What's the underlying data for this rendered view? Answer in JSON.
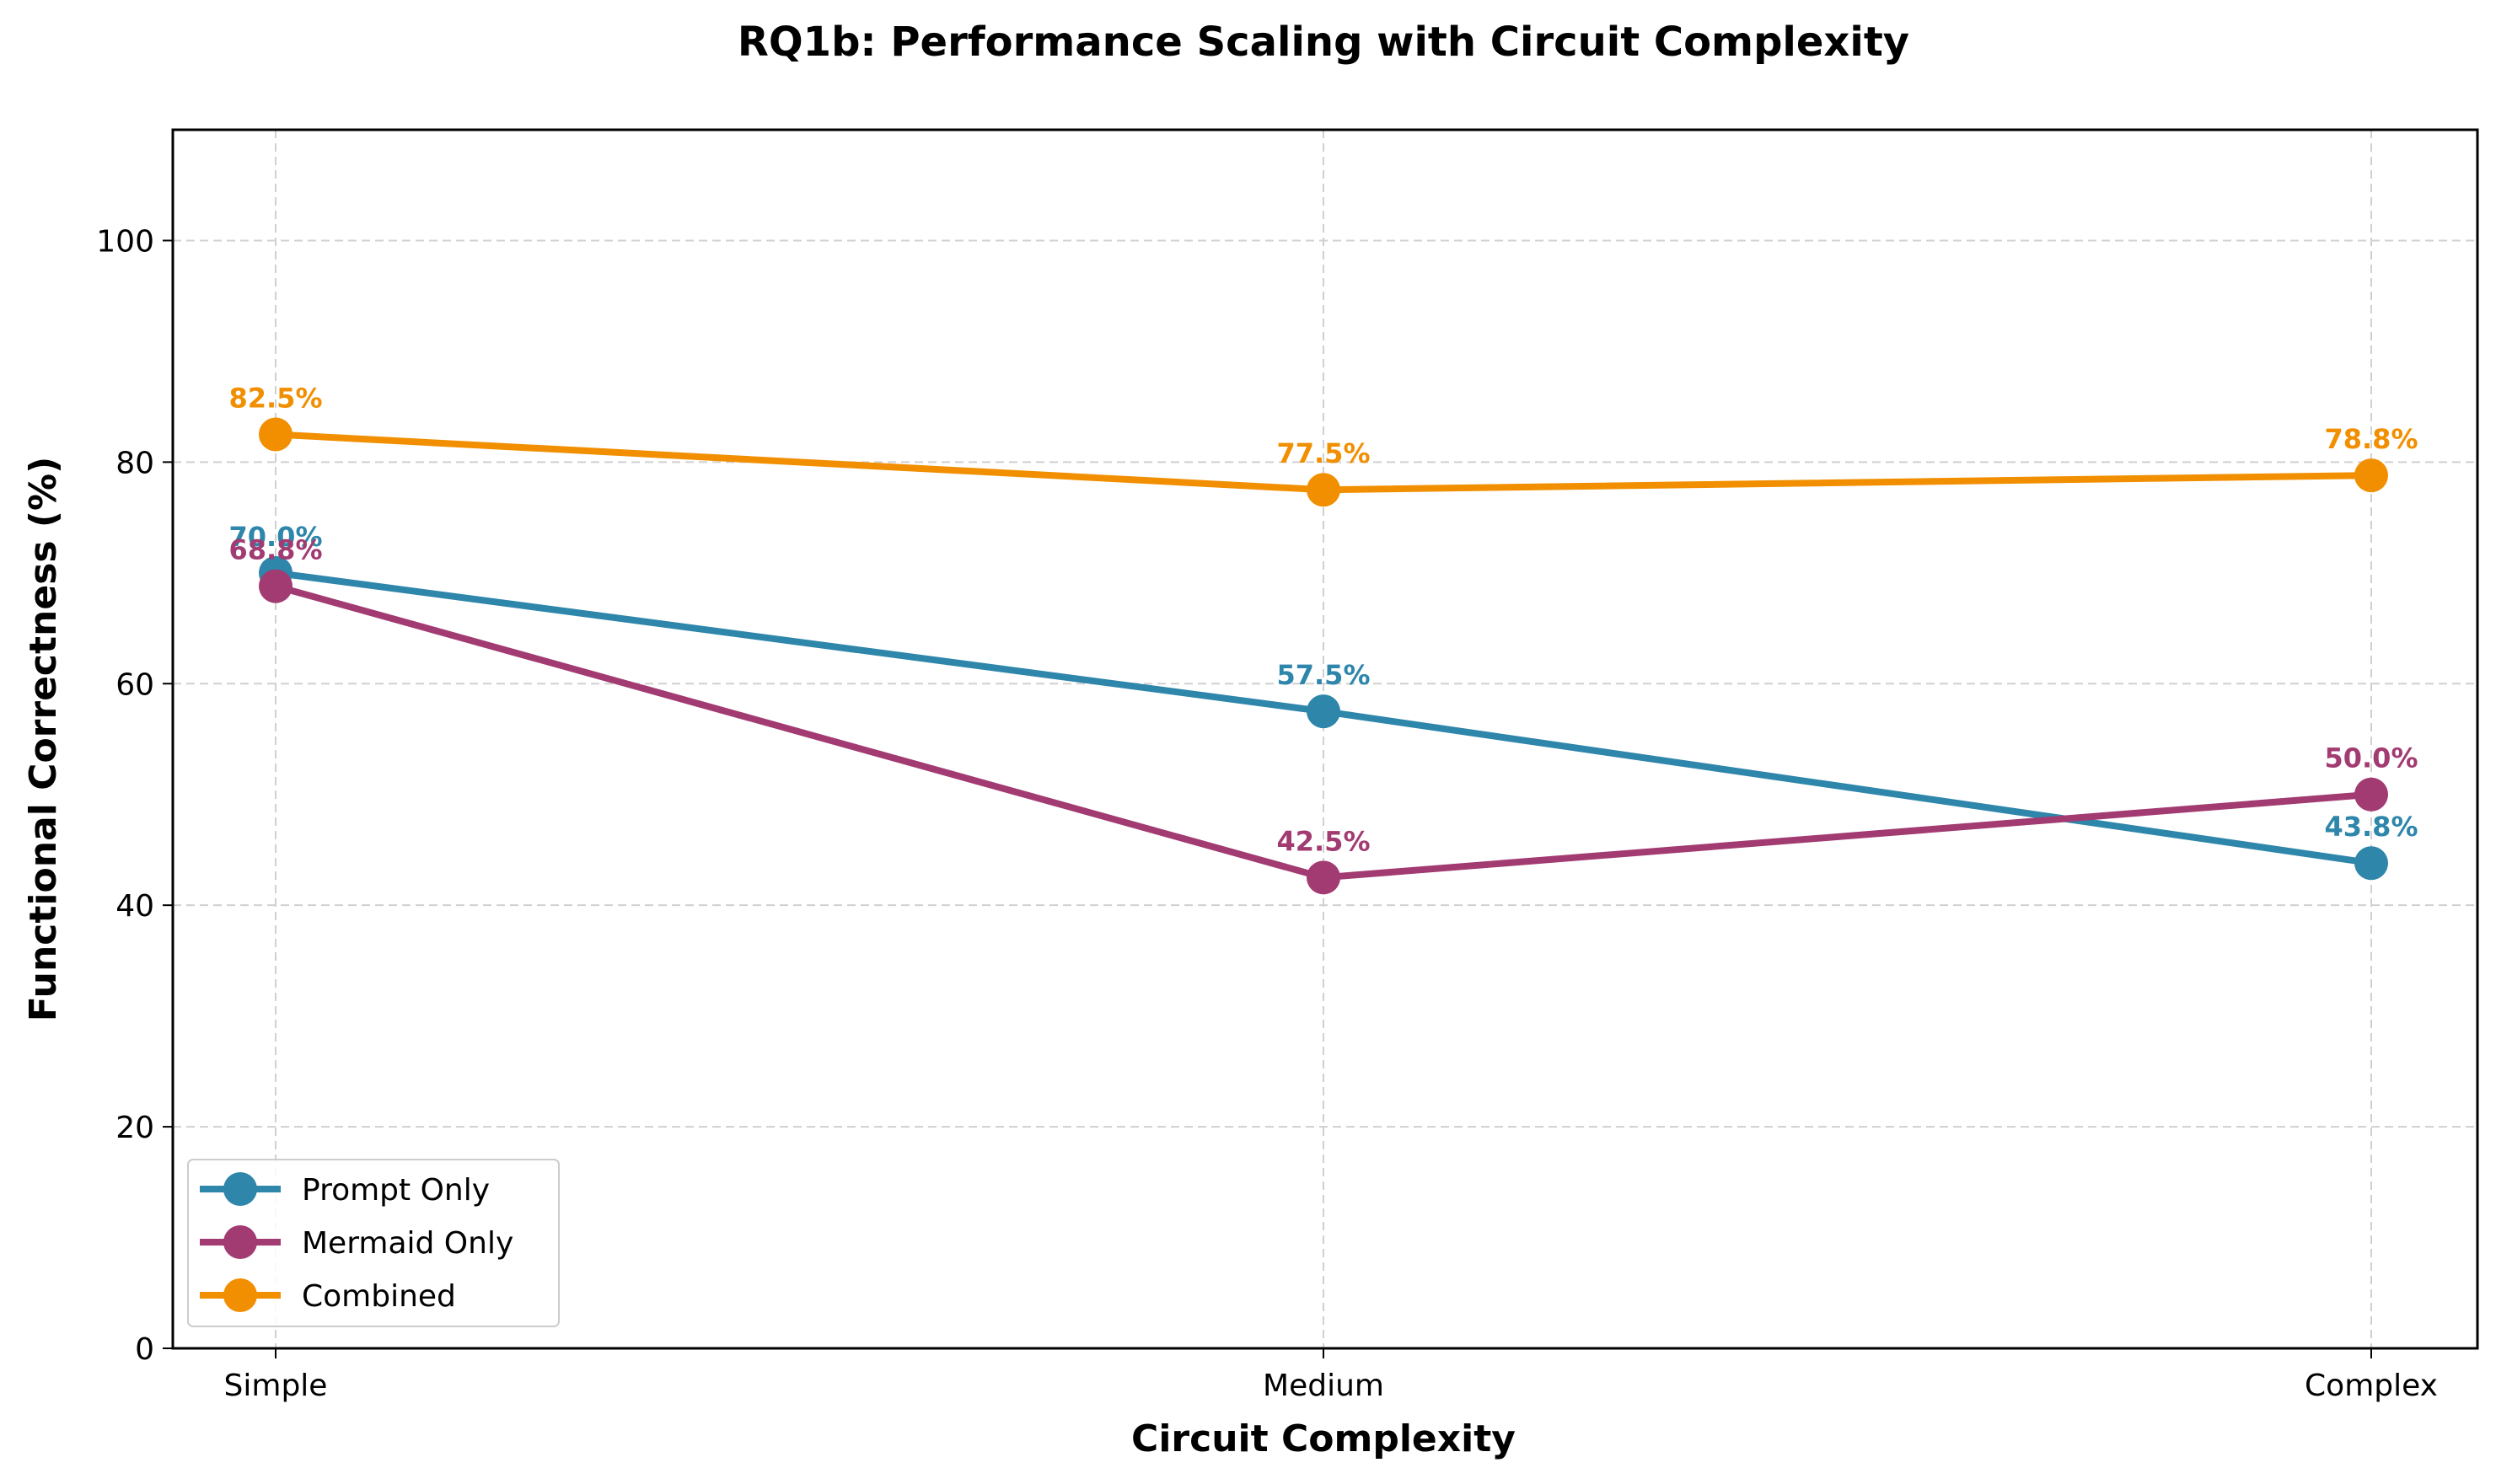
{
  "chart_data": {
    "type": "line",
    "title": "RQ1b: Performance Scaling with Circuit Complexity",
    "xlabel": "Circuit Complexity",
    "ylabel": "Functional Correctness (%)",
    "categories": [
      "Simple",
      "Medium",
      "Complex"
    ],
    "ylim": [
      0,
      110
    ],
    "yticks": [
      0,
      20,
      40,
      60,
      80,
      100
    ],
    "grid": true,
    "legend_position": "lower-left",
    "series": [
      {
        "name": "Prompt Only",
        "color": "#2e86ab",
        "values": [
          70.0,
          57.5,
          43.8
        ],
        "labels": [
          "70.0%",
          "57.5%",
          "43.8%"
        ]
      },
      {
        "name": "Mermaid Only",
        "color": "#a23b72",
        "values": [
          68.8,
          42.5,
          50.0
        ],
        "labels": [
          "68.8%",
          "42.5%",
          "50.0%"
        ]
      },
      {
        "name": "Combined",
        "color": "#f18f01",
        "values": [
          82.5,
          77.5,
          78.8
        ],
        "labels": [
          "82.5%",
          "77.5%",
          "78.8%"
        ]
      }
    ]
  }
}
